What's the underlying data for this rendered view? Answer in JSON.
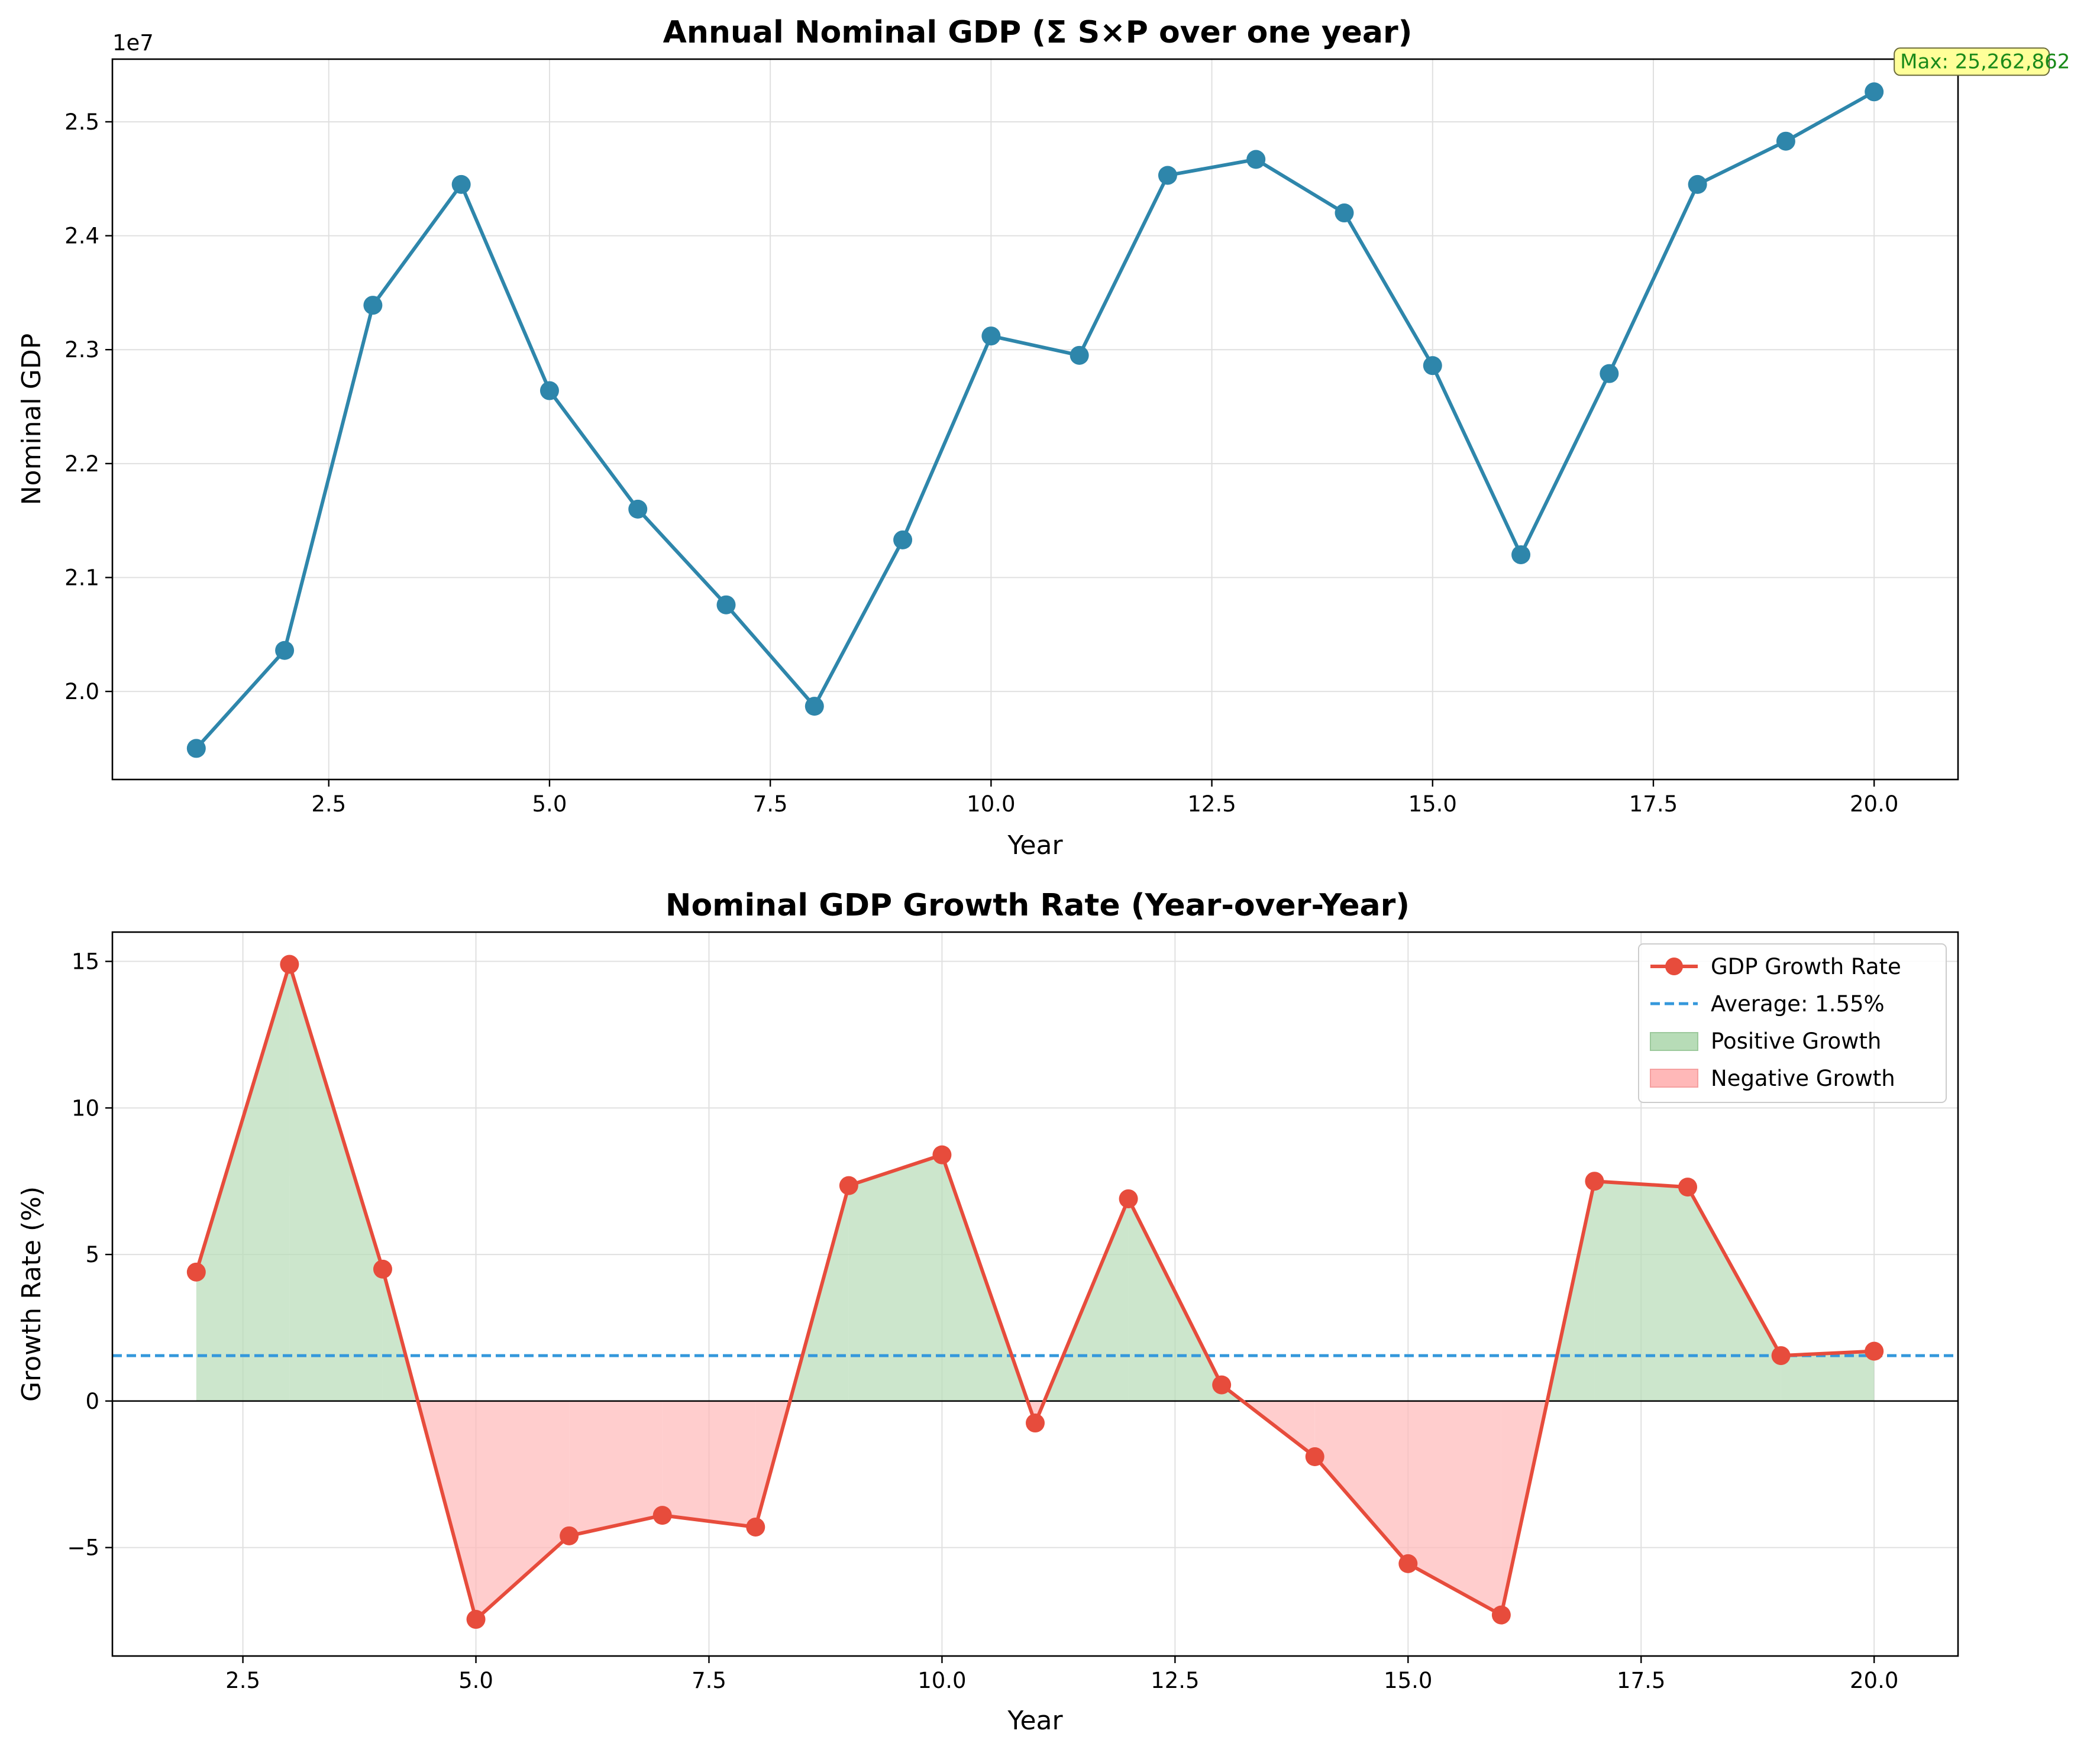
{
  "colors": {
    "gdp_line": "#2e86ab",
    "growth_line": "#e74c3c",
    "average_line": "#3498db",
    "positive_fill": "#b7dcb7",
    "negative_fill": "#ffb8b8",
    "annotation_box": "#ffff99",
    "annotation_text": "#1a8a1a",
    "grid": "#e0e0e0"
  },
  "chart_data": [
    {
      "type": "line",
      "title": "Annual Nominal GDP (Σ S×P over one year)",
      "xlabel": "Year",
      "ylabel": "Nominal GDP",
      "offset_label": "1e7",
      "xlim": [
        0.05,
        20.95
      ],
      "ylim": [
        19227000,
        25550000
      ],
      "x_ticks": [
        2.5,
        5.0,
        7.5,
        10.0,
        12.5,
        15.0,
        17.5,
        20.0
      ],
      "x_tick_labels": [
        "2.5",
        "5.0",
        "7.5",
        "10.0",
        "12.5",
        "15.0",
        "17.5",
        "20.0"
      ],
      "y_ticks": [
        20000000,
        21000000,
        22000000,
        23000000,
        24000000,
        25000000
      ],
      "y_tick_labels": [
        "2.0",
        "2.1",
        "2.2",
        "2.3",
        "2.4",
        "2.5"
      ],
      "grid": true,
      "x": [
        1,
        2,
        3,
        4,
        5,
        6,
        7,
        8,
        9,
        10,
        11,
        12,
        13,
        14,
        15,
        16,
        17,
        18,
        19,
        20
      ],
      "series": [
        {
          "values": [
            19500000,
            20360000,
            23390000,
            24450000,
            22640000,
            21600000,
            20760000,
            19870000,
            21330000,
            23120000,
            22950000,
            24530000,
            24670000,
            24200000,
            22860000,
            21200000,
            22790000,
            24450000,
            24830000,
            25262862
          ]
        }
      ],
      "annotation": {
        "text": "Max: 25,262,862",
        "x": 20,
        "y": 25262862
      }
    },
    {
      "type": "line",
      "title": "Nominal GDP Growth Rate (Year-over-Year)",
      "xlabel": "Year",
      "ylabel": "Growth Rate (%)",
      "xlim": [
        1.1,
        20.9
      ],
      "ylim": [
        -8.7,
        16.0
      ],
      "x_ticks": [
        2.5,
        5.0,
        7.5,
        10.0,
        12.5,
        15.0,
        17.5,
        20.0
      ],
      "x_tick_labels": [
        "2.5",
        "5.0",
        "7.5",
        "10.0",
        "12.5",
        "15.0",
        "17.5",
        "20.0"
      ],
      "y_ticks": [
        -5,
        0,
        5,
        10,
        15
      ],
      "y_tick_labels": [
        "−5",
        "0",
        "5",
        "10",
        "15"
      ],
      "grid": true,
      "legend_position": "top-right",
      "x": [
        2,
        3,
        4,
        5,
        6,
        7,
        8,
        9,
        10,
        11,
        12,
        13,
        14,
        15,
        16,
        17,
        18,
        19,
        20
      ],
      "series": [
        {
          "name": "GDP Growth Rate",
          "values": [
            4.4,
            14.9,
            4.5,
            -7.45,
            -4.6,
            -3.9,
            -4.3,
            7.35,
            8.4,
            -0.75,
            6.9,
            0.55,
            -1.9,
            -5.55,
            -7.3,
            7.5,
            7.3,
            1.55,
            1.7
          ]
        }
      ],
      "average": {
        "name": "Average: 1.55%",
        "value": 1.55
      },
      "fills": {
        "positive": "Positive Growth",
        "negative": "Negative Growth"
      }
    }
  ]
}
